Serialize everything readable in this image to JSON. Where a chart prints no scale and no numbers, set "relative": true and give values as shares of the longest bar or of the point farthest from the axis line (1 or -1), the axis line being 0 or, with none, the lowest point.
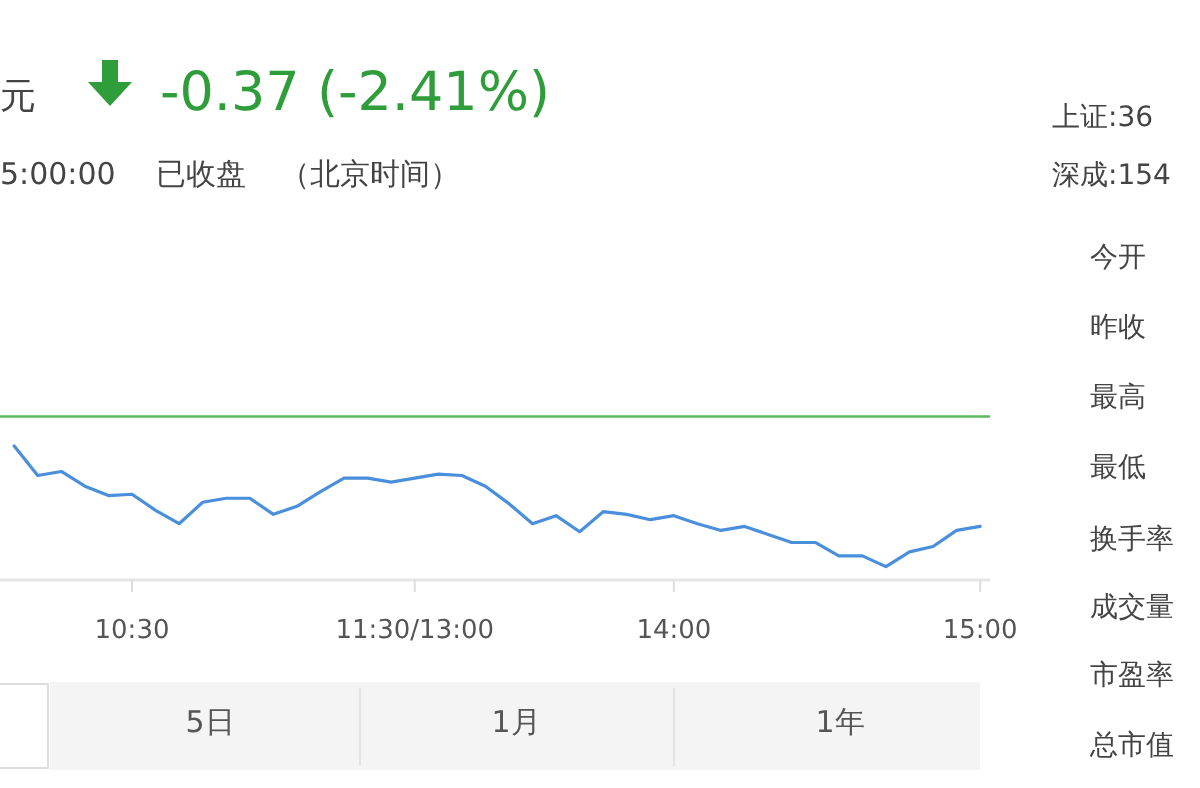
{
  "chart_data": {
    "type": "line",
    "relative": true,
    "title": "-0.37 (-2.41%)",
    "categories": [
      null,
      null,
      null,
      null,
      null,
      "10:30",
      null,
      null,
      null,
      null,
      null,
      null,
      null,
      null,
      null,
      null,
      null,
      "11:30/13:00",
      null,
      null,
      null,
      null,
      null,
      null,
      null,
      null,
      null,
      null,
      "14:00",
      null,
      null,
      null,
      null,
      null,
      null,
      null,
      null,
      null,
      null,
      null,
      null,
      "15:00"
    ],
    "series": [
      {
        "color": "#4a8fdc",
        "values": [
          1.0,
          0.78,
          0.81,
          0.7,
          0.63,
          0.64,
          0.52,
          0.42,
          0.58,
          0.61,
          0.61,
          0.49,
          0.55,
          0.66,
          0.76,
          0.76,
          0.73,
          0.76,
          0.79,
          0.78,
          0.7,
          0.57,
          0.42,
          0.48,
          0.36,
          0.51,
          0.49,
          0.45,
          0.48,
          0.42,
          0.37,
          0.4,
          0.34,
          0.28,
          0.28,
          0.18,
          0.18,
          0.1,
          0.21,
          0.25,
          0.37,
          0.4
        ]
      }
    ],
    "ref_lines": [
      {
        "axis": "y",
        "value": 1.22,
        "color": "#5cb85c",
        "line_style": "solid"
      }
    ],
    "annotations": [
      "元",
      "5:00:00",
      "已收盘",
      "（北京时间）",
      "上证:36",
      "深成:154",
      "今开",
      "昨收",
      "最高",
      "最低",
      "换手率",
      "成交量",
      "市盈率",
      "总市值",
      "5日",
      "1月",
      "1年"
    ],
    "grid": false,
    "marker": "none",
    "line_style": "solid"
  }
}
